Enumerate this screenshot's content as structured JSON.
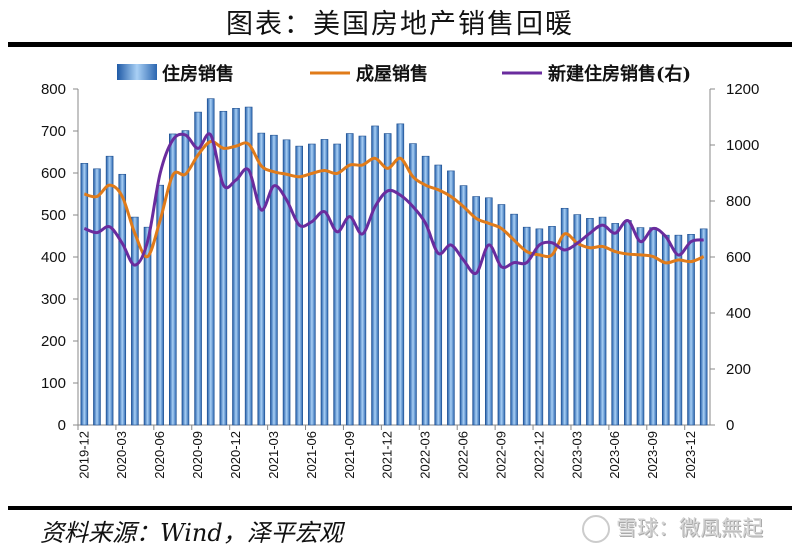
{
  "title": "图表：美国房地产销售回暖",
  "source": "资料来源：Wind，泽平宏观",
  "watermark": "雪球：微風無起",
  "chart_data": {
    "type": "bar+line",
    "title": "图表：美国房地产销售回暖",
    "categories": [
      "2019-12",
      "2020-01",
      "2020-02",
      "2020-03",
      "2020-04",
      "2020-05",
      "2020-06",
      "2020-07",
      "2020-08",
      "2020-09",
      "2020-10",
      "2020-11",
      "2020-12",
      "2021-01",
      "2021-02",
      "2021-03",
      "2021-04",
      "2021-05",
      "2021-06",
      "2021-07",
      "2021-08",
      "2021-09",
      "2021-10",
      "2021-11",
      "2021-12",
      "2022-01",
      "2022-02",
      "2022-03",
      "2022-04",
      "2022-05",
      "2022-06",
      "2022-07",
      "2022-08",
      "2022-09",
      "2022-10",
      "2022-11",
      "2022-12",
      "2023-01",
      "2023-02",
      "2023-03",
      "2023-04",
      "2023-05",
      "2023-06",
      "2023-07",
      "2023-08",
      "2023-09",
      "2023-10",
      "2023-11",
      "2023-12",
      "2024-01"
    ],
    "x_tick_labels": [
      "2019-12",
      "2020-03",
      "2020-06",
      "2020-09",
      "2020-12",
      "2021-03",
      "2021-06",
      "2021-09",
      "2021-12",
      "2022-03",
      "2022-06",
      "2022-09",
      "2022-12",
      "2023-03",
      "2023-06",
      "2023-09",
      "2023-12"
    ],
    "y_left": {
      "ylim": [
        0,
        800
      ],
      "ticks": [
        0,
        100,
        200,
        300,
        400,
        500,
        600,
        700,
        800
      ]
    },
    "y_right": {
      "ylim": [
        0,
        1200
      ],
      "ticks": [
        0,
        200,
        400,
        600,
        800,
        1000,
        1200
      ]
    },
    "grid": false,
    "legend_placement": "top",
    "series": [
      {
        "name": "住房销售",
        "type": "bar",
        "axis": "left",
        "color": "#4a86c8",
        "values": [
          623,
          610,
          640,
          597,
          495,
          471,
          571,
          693,
          701,
          745,
          777,
          747,
          754,
          757,
          695,
          690,
          679,
          664,
          669,
          680,
          669,
          694,
          688,
          712,
          694,
          717,
          670,
          640,
          619,
          605,
          570,
          544,
          541,
          525,
          502,
          471,
          467,
          473,
          516,
          501,
          492,
          495,
          480,
          487,
          470,
          470,
          452,
          452,
          454,
          467
        ]
      },
      {
        "name": "成屋销售",
        "type": "line",
        "axis": "left",
        "color": "#e07b1a",
        "values": [
          550,
          544,
          571,
          544,
          456,
          401,
          488,
          595,
          597,
          643,
          675,
          659,
          664,
          669,
          617,
          603,
          597,
          591,
          599,
          606,
          599,
          619,
          619,
          635,
          611,
          635,
          591,
          571,
          560,
          544,
          520,
          492,
          480,
          468,
          440,
          413,
          405,
          405,
          455,
          433,
          422,
          425,
          413,
          407,
          405,
          401,
          386,
          393,
          389,
          401
        ]
      },
      {
        "name": "新建住房销售(右)",
        "type": "line",
        "axis": "right",
        "color": "#6a2c9e",
        "values": [
          702,
          687,
          708,
          649,
          571,
          655,
          899,
          1018,
          1036,
          988,
          1036,
          857,
          875,
          911,
          768,
          854,
          804,
          714,
          726,
          762,
          690,
          744,
          682,
          780,
          836,
          821,
          780,
          720,
          613,
          643,
          589,
          542,
          643,
          565,
          580,
          580,
          643,
          651,
          625,
          649,
          685,
          714,
          685,
          730,
          655,
          702,
          673,
          607,
          655,
          661
        ]
      }
    ]
  }
}
